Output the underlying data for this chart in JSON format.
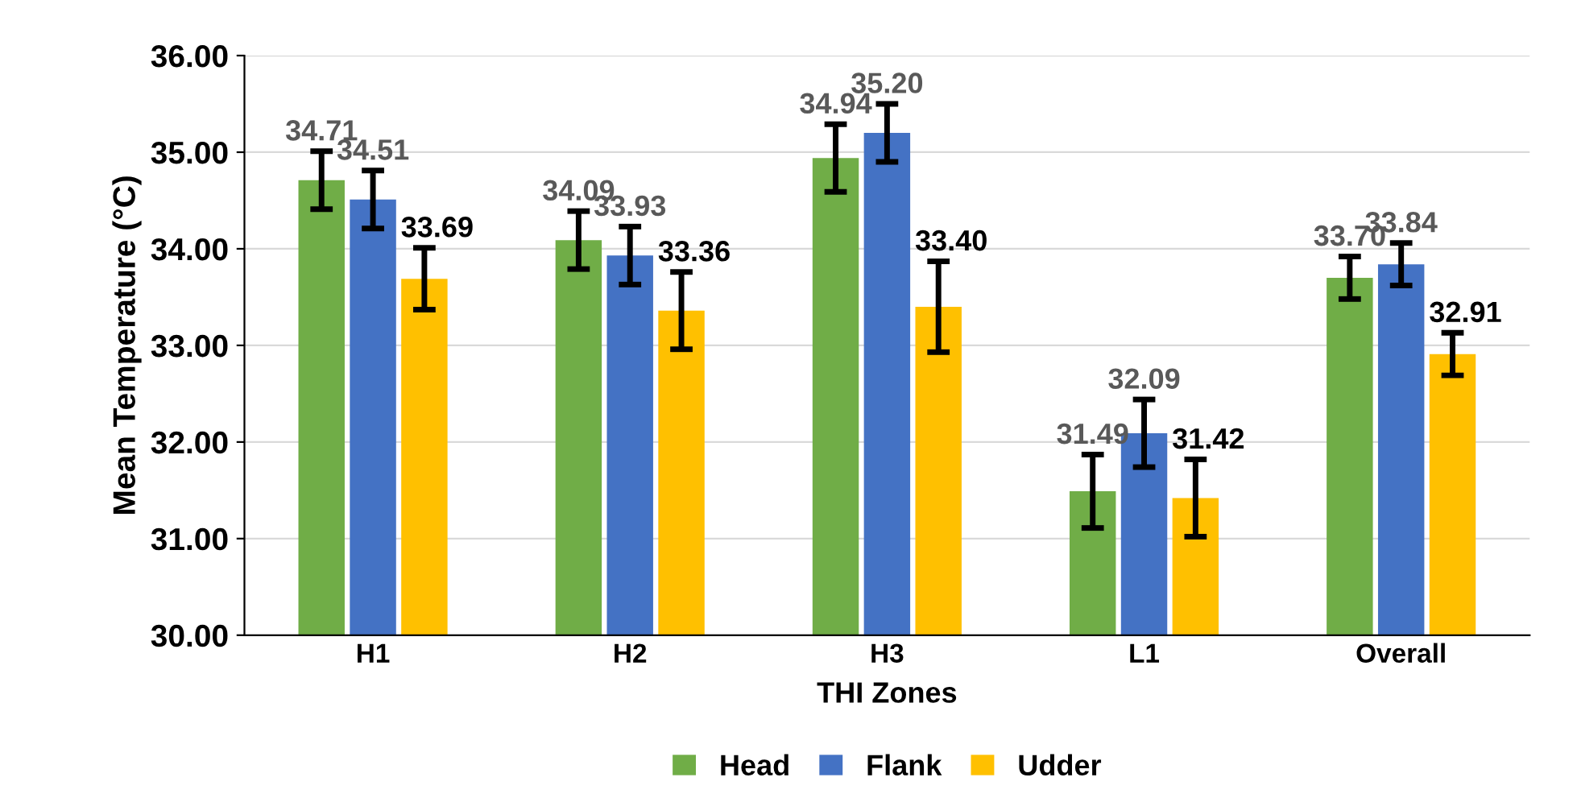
{
  "chart_data": {
    "type": "bar",
    "xlabel": "THI Zones",
    "ylabel": "Mean Temperature (°C)",
    "categories": [
      "H1",
      "H2",
      "H3",
      "L1",
      "Overall"
    ],
    "series": [
      {
        "name": "Head",
        "color": "#70ad47",
        "values": [
          34.71,
          34.09,
          34.94,
          31.49,
          33.7
        ],
        "errors": [
          0.3,
          0.3,
          0.35,
          0.38,
          0.22
        ],
        "value_labels": [
          "34.71",
          "34.09",
          "34.94",
          "31.49",
          "33.70"
        ]
      },
      {
        "name": "Flank",
        "color": "#4472c4",
        "values": [
          34.51,
          33.93,
          35.2,
          32.09,
          33.84
        ],
        "errors": [
          0.3,
          0.3,
          0.3,
          0.35,
          0.22
        ],
        "value_labels": [
          "34.51",
          "33.93",
          "35.20",
          "32.09",
          "33.84"
        ]
      },
      {
        "name": "Udder",
        "color": "#ffc000",
        "values": [
          33.69,
          33.36,
          33.4,
          31.42,
          32.91
        ],
        "errors": [
          0.32,
          0.4,
          0.47,
          0.4,
          0.22
        ],
        "value_labels": [
          "33.69",
          "33.36",
          "33.40",
          "31.42",
          "32.91"
        ]
      }
    ],
    "ylim": [
      30,
      36
    ],
    "yticks": [
      {
        "value": 30,
        "label": "30.00"
      },
      {
        "value": 31,
        "label": "31.00"
      },
      {
        "value": 32,
        "label": "32.00"
      },
      {
        "value": 33,
        "label": "33.00"
      },
      {
        "value": 34,
        "label": "34.00"
      },
      {
        "value": 35,
        "label": "35.00"
      },
      {
        "value": 36,
        "label": "36.00"
      }
    ],
    "grid": "y",
    "legend": "bottom"
  }
}
